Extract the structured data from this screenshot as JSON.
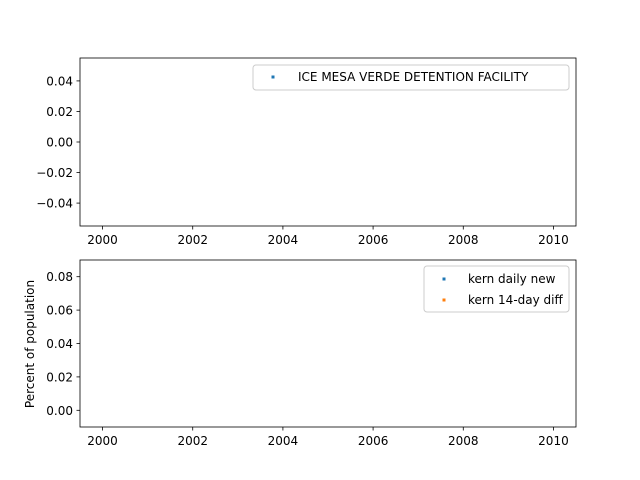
{
  "chart_data": [
    {
      "type": "scatter",
      "xlim": [
        1999.5,
        2010.5
      ],
      "x_ticks": [
        "2000",
        "2002",
        "2004",
        "2006",
        "2008",
        "2010"
      ],
      "ylim": [
        -0.055,
        0.055
      ],
      "y_ticks": [
        "0.04",
        "0.02",
        "0.00",
        "−0.02",
        "−0.04"
      ],
      "ylabel": "",
      "legend_position": "upper-right",
      "series": [
        {
          "name": "ICE MESA VERDE DETENTION FACILITY",
          "color": "#1f77b4",
          "points": []
        }
      ]
    },
    {
      "type": "scatter",
      "xlim": [
        1999.5,
        2010.5
      ],
      "x_ticks": [
        "2000",
        "2002",
        "2004",
        "2006",
        "2008",
        "2010"
      ],
      "ylim": [
        -0.01,
        0.09
      ],
      "y_ticks": [
        "0.08",
        "0.06",
        "0.04",
        "0.02",
        "0.00"
      ],
      "ylabel": "Percent of population",
      "legend_position": "upper-right",
      "series": [
        {
          "name": "kern daily new",
          "color": "#1f77b4",
          "points": []
        },
        {
          "name": "kern 14-day diff",
          "color": "#ff7f0e",
          "points": []
        }
      ]
    }
  ]
}
